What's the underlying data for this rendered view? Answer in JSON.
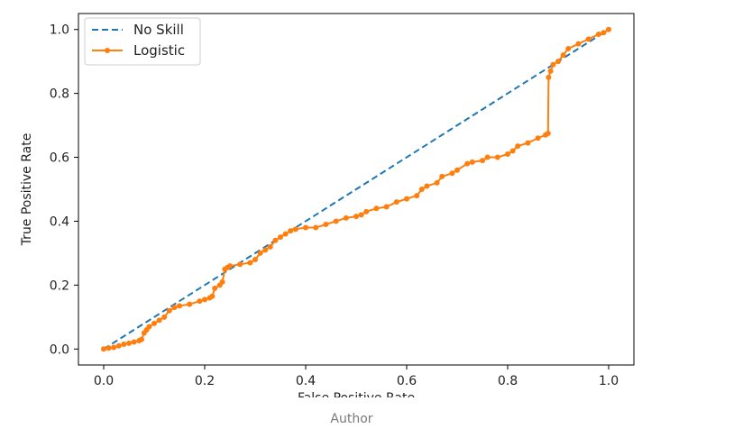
{
  "caption": "Author",
  "colors": {
    "no_skill": "#1f77b4",
    "logistic": "#ff7f0e"
  },
  "chart_data": {
    "type": "line",
    "title": "",
    "xlabel": "False Positive Rate",
    "ylabel": "True Positive Rate",
    "xlim": [
      -0.05,
      1.05
    ],
    "ylim": [
      -0.05,
      1.05
    ],
    "xticks": [
      "0.0",
      "0.2",
      "0.4",
      "0.6",
      "0.8",
      "1.0"
    ],
    "yticks": [
      "0.0",
      "0.2",
      "0.4",
      "0.6",
      "0.8",
      "1.0"
    ],
    "grid": false,
    "legend_position": "top-left",
    "series": [
      {
        "name": "No Skill",
        "style": "dashed",
        "color": "#1f77b4",
        "points": [
          [
            0.0,
            0.0
          ],
          [
            1.0,
            1.0
          ]
        ]
      },
      {
        "name": "Logistic",
        "style": "solid-dot",
        "color": "#ff7f0e",
        "points": [
          [
            0.0,
            0.0
          ],
          [
            0.01,
            0.003
          ],
          [
            0.02,
            0.005
          ],
          [
            0.03,
            0.01
          ],
          [
            0.04,
            0.015
          ],
          [
            0.05,
            0.018
          ],
          [
            0.06,
            0.022
          ],
          [
            0.07,
            0.026
          ],
          [
            0.075,
            0.03
          ],
          [
            0.08,
            0.05
          ],
          [
            0.085,
            0.06
          ],
          [
            0.09,
            0.07
          ],
          [
            0.1,
            0.08
          ],
          [
            0.11,
            0.09
          ],
          [
            0.12,
            0.1
          ],
          [
            0.13,
            0.12
          ],
          [
            0.14,
            0.13
          ],
          [
            0.15,
            0.135
          ],
          [
            0.17,
            0.14
          ],
          [
            0.19,
            0.15
          ],
          [
            0.2,
            0.155
          ],
          [
            0.21,
            0.16
          ],
          [
            0.215,
            0.165
          ],
          [
            0.22,
            0.19
          ],
          [
            0.23,
            0.2
          ],
          [
            0.235,
            0.21
          ],
          [
            0.24,
            0.25
          ],
          [
            0.245,
            0.255
          ],
          [
            0.25,
            0.26
          ],
          [
            0.27,
            0.265
          ],
          [
            0.29,
            0.27
          ],
          [
            0.3,
            0.28
          ],
          [
            0.31,
            0.3
          ],
          [
            0.32,
            0.31
          ],
          [
            0.33,
            0.32
          ],
          [
            0.34,
            0.34
          ],
          [
            0.35,
            0.35
          ],
          [
            0.36,
            0.36
          ],
          [
            0.37,
            0.37
          ],
          [
            0.38,
            0.375
          ],
          [
            0.4,
            0.38
          ],
          [
            0.42,
            0.38
          ],
          [
            0.44,
            0.39
          ],
          [
            0.46,
            0.4
          ],
          [
            0.48,
            0.41
          ],
          [
            0.5,
            0.415
          ],
          [
            0.51,
            0.42
          ],
          [
            0.52,
            0.43
          ],
          [
            0.54,
            0.44
          ],
          [
            0.56,
            0.445
          ],
          [
            0.58,
            0.46
          ],
          [
            0.6,
            0.47
          ],
          [
            0.62,
            0.48
          ],
          [
            0.63,
            0.5
          ],
          [
            0.64,
            0.51
          ],
          [
            0.66,
            0.52
          ],
          [
            0.67,
            0.54
          ],
          [
            0.69,
            0.55
          ],
          [
            0.7,
            0.56
          ],
          [
            0.72,
            0.58
          ],
          [
            0.73,
            0.585
          ],
          [
            0.75,
            0.59
          ],
          [
            0.76,
            0.6
          ],
          [
            0.78,
            0.6
          ],
          [
            0.8,
            0.61
          ],
          [
            0.81,
            0.62
          ],
          [
            0.82,
            0.635
          ],
          [
            0.84,
            0.645
          ],
          [
            0.86,
            0.66
          ],
          [
            0.875,
            0.67
          ],
          [
            0.88,
            0.675
          ],
          [
            0.881,
            0.85
          ],
          [
            0.885,
            0.87
          ],
          [
            0.89,
            0.89
          ],
          [
            0.9,
            0.9
          ],
          [
            0.91,
            0.92
          ],
          [
            0.92,
            0.94
          ],
          [
            0.94,
            0.955
          ],
          [
            0.96,
            0.97
          ],
          [
            0.98,
            0.985
          ],
          [
            0.99,
            0.99
          ],
          [
            1.0,
            1.0
          ]
        ]
      }
    ]
  }
}
